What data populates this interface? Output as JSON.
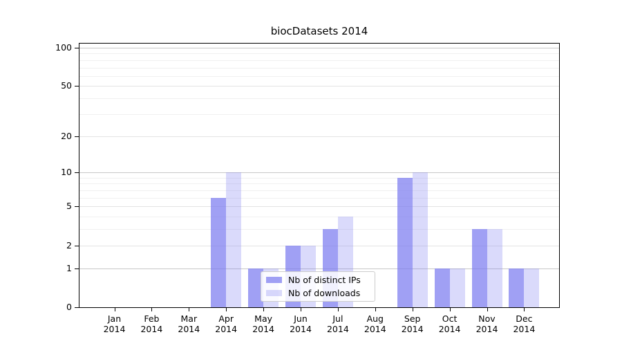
{
  "title": "biocDatasets 2014",
  "colors": {
    "background": "#ffffff",
    "bar_ips": "rgba(120,120,240,0.70)",
    "bar_downloads": "rgba(120,120,240,0.27)",
    "grid_decade": "#c8c8c8",
    "grid_mid": "#e3e3e3",
    "grid_minor": "#f0f0f0",
    "axis": "#000000",
    "text": "#000000",
    "legend_bg": "rgba(255,255,255,0.85)",
    "legend_border": "#cccccc"
  },
  "legend": {
    "items": [
      {
        "label": "Nb of distinct IPs",
        "color": "rgba(120,120,240,0.70)"
      },
      {
        "label": "Nb of downloads",
        "color": "rgba(120,120,240,0.27)"
      }
    ]
  },
  "chart_data": {
    "type": "bar",
    "title": "biocDatasets 2014",
    "months": [
      "Jan",
      "Feb",
      "Mar",
      "Apr",
      "May",
      "Jun",
      "Jul",
      "Aug",
      "Sep",
      "Oct",
      "Nov",
      "Dec"
    ],
    "year": "2014",
    "categories": [
      "Jan 2014",
      "Feb 2014",
      "Mar 2014",
      "Apr 2014",
      "May 2014",
      "Jun 2014",
      "Jul 2014",
      "Aug 2014",
      "Sep 2014",
      "Oct 2014",
      "Nov 2014",
      "Dec 2014"
    ],
    "series": [
      {
        "name": "Nb of distinct IPs",
        "values": [
          0,
          0,
          0,
          6,
          1,
          2,
          3,
          0,
          9,
          1,
          3,
          1
        ]
      },
      {
        "name": "Nb of downloads",
        "values": [
          0,
          0,
          0,
          10,
          1,
          2,
          4,
          0,
          10,
          1,
          3,
          1
        ]
      }
    ],
    "y_scale": "log1p",
    "y_axis_ticks": [
      0,
      1,
      2,
      5,
      10,
      20,
      50,
      100
    ],
    "y_minor_gridlines": [
      3,
      4,
      6,
      7,
      8,
      9,
      30,
      40,
      60,
      70,
      80,
      90
    ],
    "ylim": [
      0,
      108
    ],
    "grid": true,
    "legend_position": "inside lower-center"
  }
}
